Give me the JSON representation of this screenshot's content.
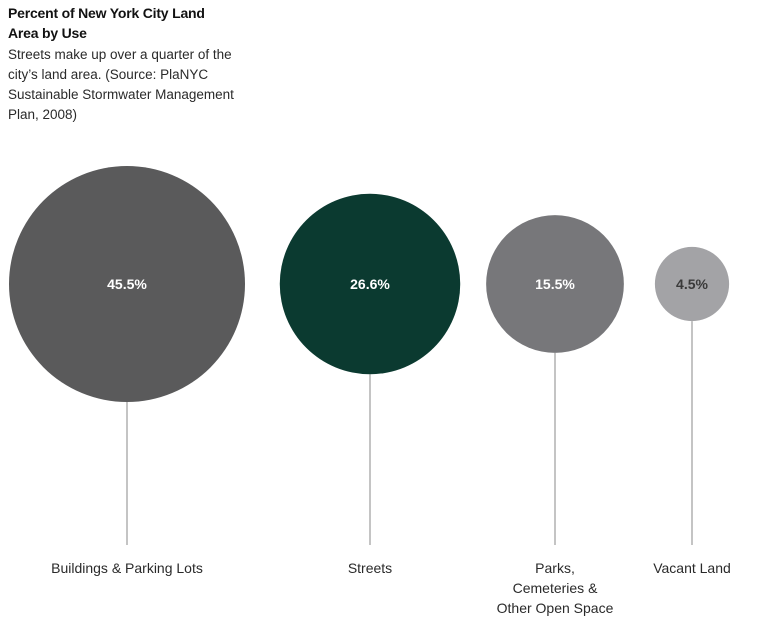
{
  "chart_data": {
    "type": "bubble",
    "title": "Percent of New York City Land Area by Use",
    "subtitle": "Streets make up over a quarter of the city’s land area. (Source: PlaNYC Sustainable Stormwater Management Plan, 2008)",
    "unit": "%",
    "categories": [
      "Buildings & Parking Lots",
      "Streets",
      "Parks, Cemeteries & Other Open Space",
      "Vacant Land"
    ],
    "values": [
      45.5,
      26.6,
      15.5,
      4.5
    ],
    "data_labels": [
      "45.5%",
      "26.6%",
      "15.5%",
      "4.5%"
    ],
    "category_labels": [
      [
        "Buildings & Parking Lots"
      ],
      [
        "Streets"
      ],
      [
        "Parks,",
        "Cemeteries &",
        "Other Open Space"
      ],
      [
        "Vacant Land"
      ]
    ],
    "colors": [
      "#5a5a5b",
      "#0b3a30",
      "#77777a",
      "#a3a3a6"
    ],
    "label_colors": [
      "#ffffff",
      "#ffffff",
      "#ffffff",
      "#3a3a3a"
    ],
    "connector_color": "#8a8a8a",
    "legend": "none",
    "grid": false
  }
}
